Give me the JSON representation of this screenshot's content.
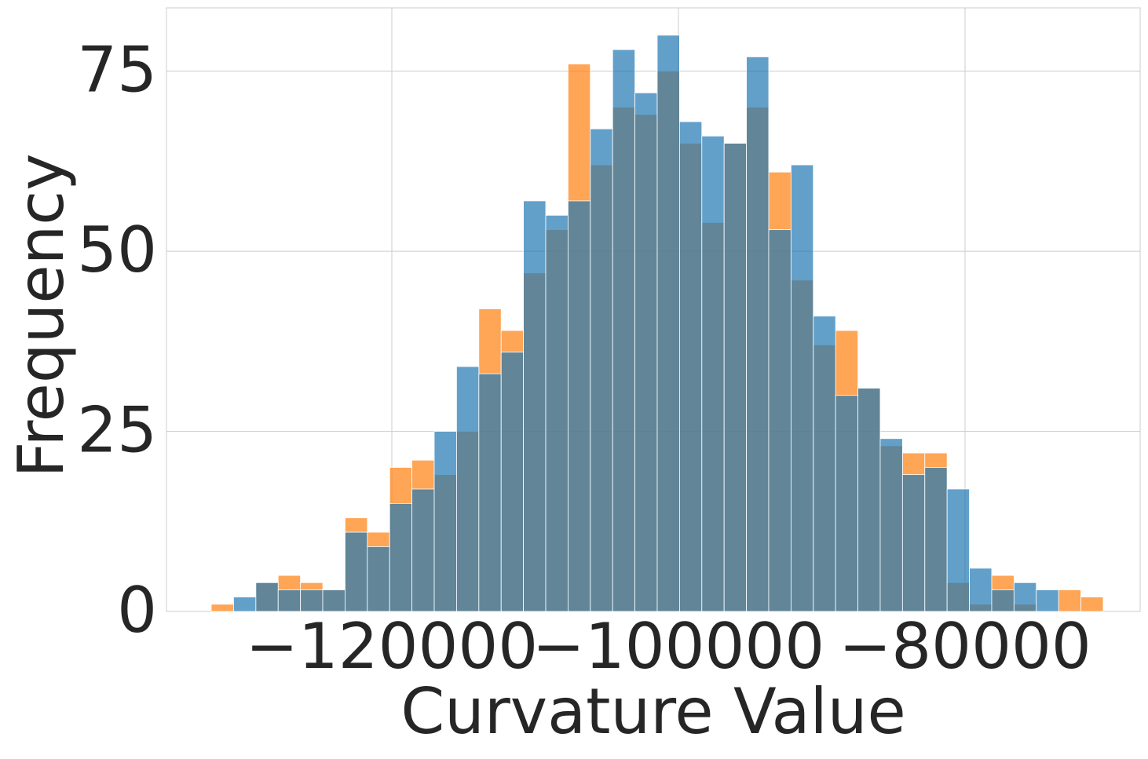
{
  "chart_data": {
    "type": "histogram",
    "xlabel": "Curvature Value",
    "ylabel": "Frequency",
    "bins": [
      -132600,
      -131044,
      -129488,
      -127932,
      -126376,
      -124820,
      -123264,
      -121708,
      -120152,
      -118596,
      -117040,
      -115484,
      -113928,
      -112372,
      -110816,
      -109260,
      -107704,
      -106148,
      -104592,
      -103036,
      -101480,
      -99924,
      -98368,
      -96812,
      -95256,
      -93700,
      -92144,
      -90588,
      -89032,
      -87476,
      -85920,
      -84364,
      -82808,
      -81252,
      -79696,
      -78140,
      -76584,
      -75028,
      -73472,
      -71916,
      -70360
    ],
    "series": [
      {
        "color": "#ff7f0e",
        "values": [
          1,
          0,
          4,
          5,
          4,
          3,
          13,
          11,
          20,
          21,
          19,
          25,
          42,
          39,
          47,
          53,
          76,
          62,
          70,
          69,
          75,
          65,
          54,
          65,
          70,
          61,
          46,
          37,
          39,
          31,
          23,
          22,
          22,
          4,
          1,
          5,
          1,
          0,
          3,
          2
        ]
      },
      {
        "color": "#1f77b4",
        "values": [
          0,
          2,
          4,
          3,
          3,
          3,
          11,
          9,
          15,
          17,
          25,
          34,
          33,
          36,
          57,
          55,
          57,
          67,
          78,
          72,
          80,
          68,
          66,
          65,
          77,
          53,
          62,
          41,
          30,
          31,
          24,
          19,
          20,
          17,
          6,
          3,
          4,
          3,
          0,
          0
        ]
      }
    ],
    "alpha": 0.7,
    "xlim": [
      -135726,
      -67781
    ],
    "ylim": [
      0,
      83.8
    ],
    "xticks": [
      {
        "value": -120000,
        "label": "−120000"
      },
      {
        "value": -100000,
        "label": "−100000"
      },
      {
        "value": -80000,
        "label": "−80000"
      }
    ],
    "yticks": [
      0,
      25,
      50,
      75
    ],
    "grid": true
  }
}
